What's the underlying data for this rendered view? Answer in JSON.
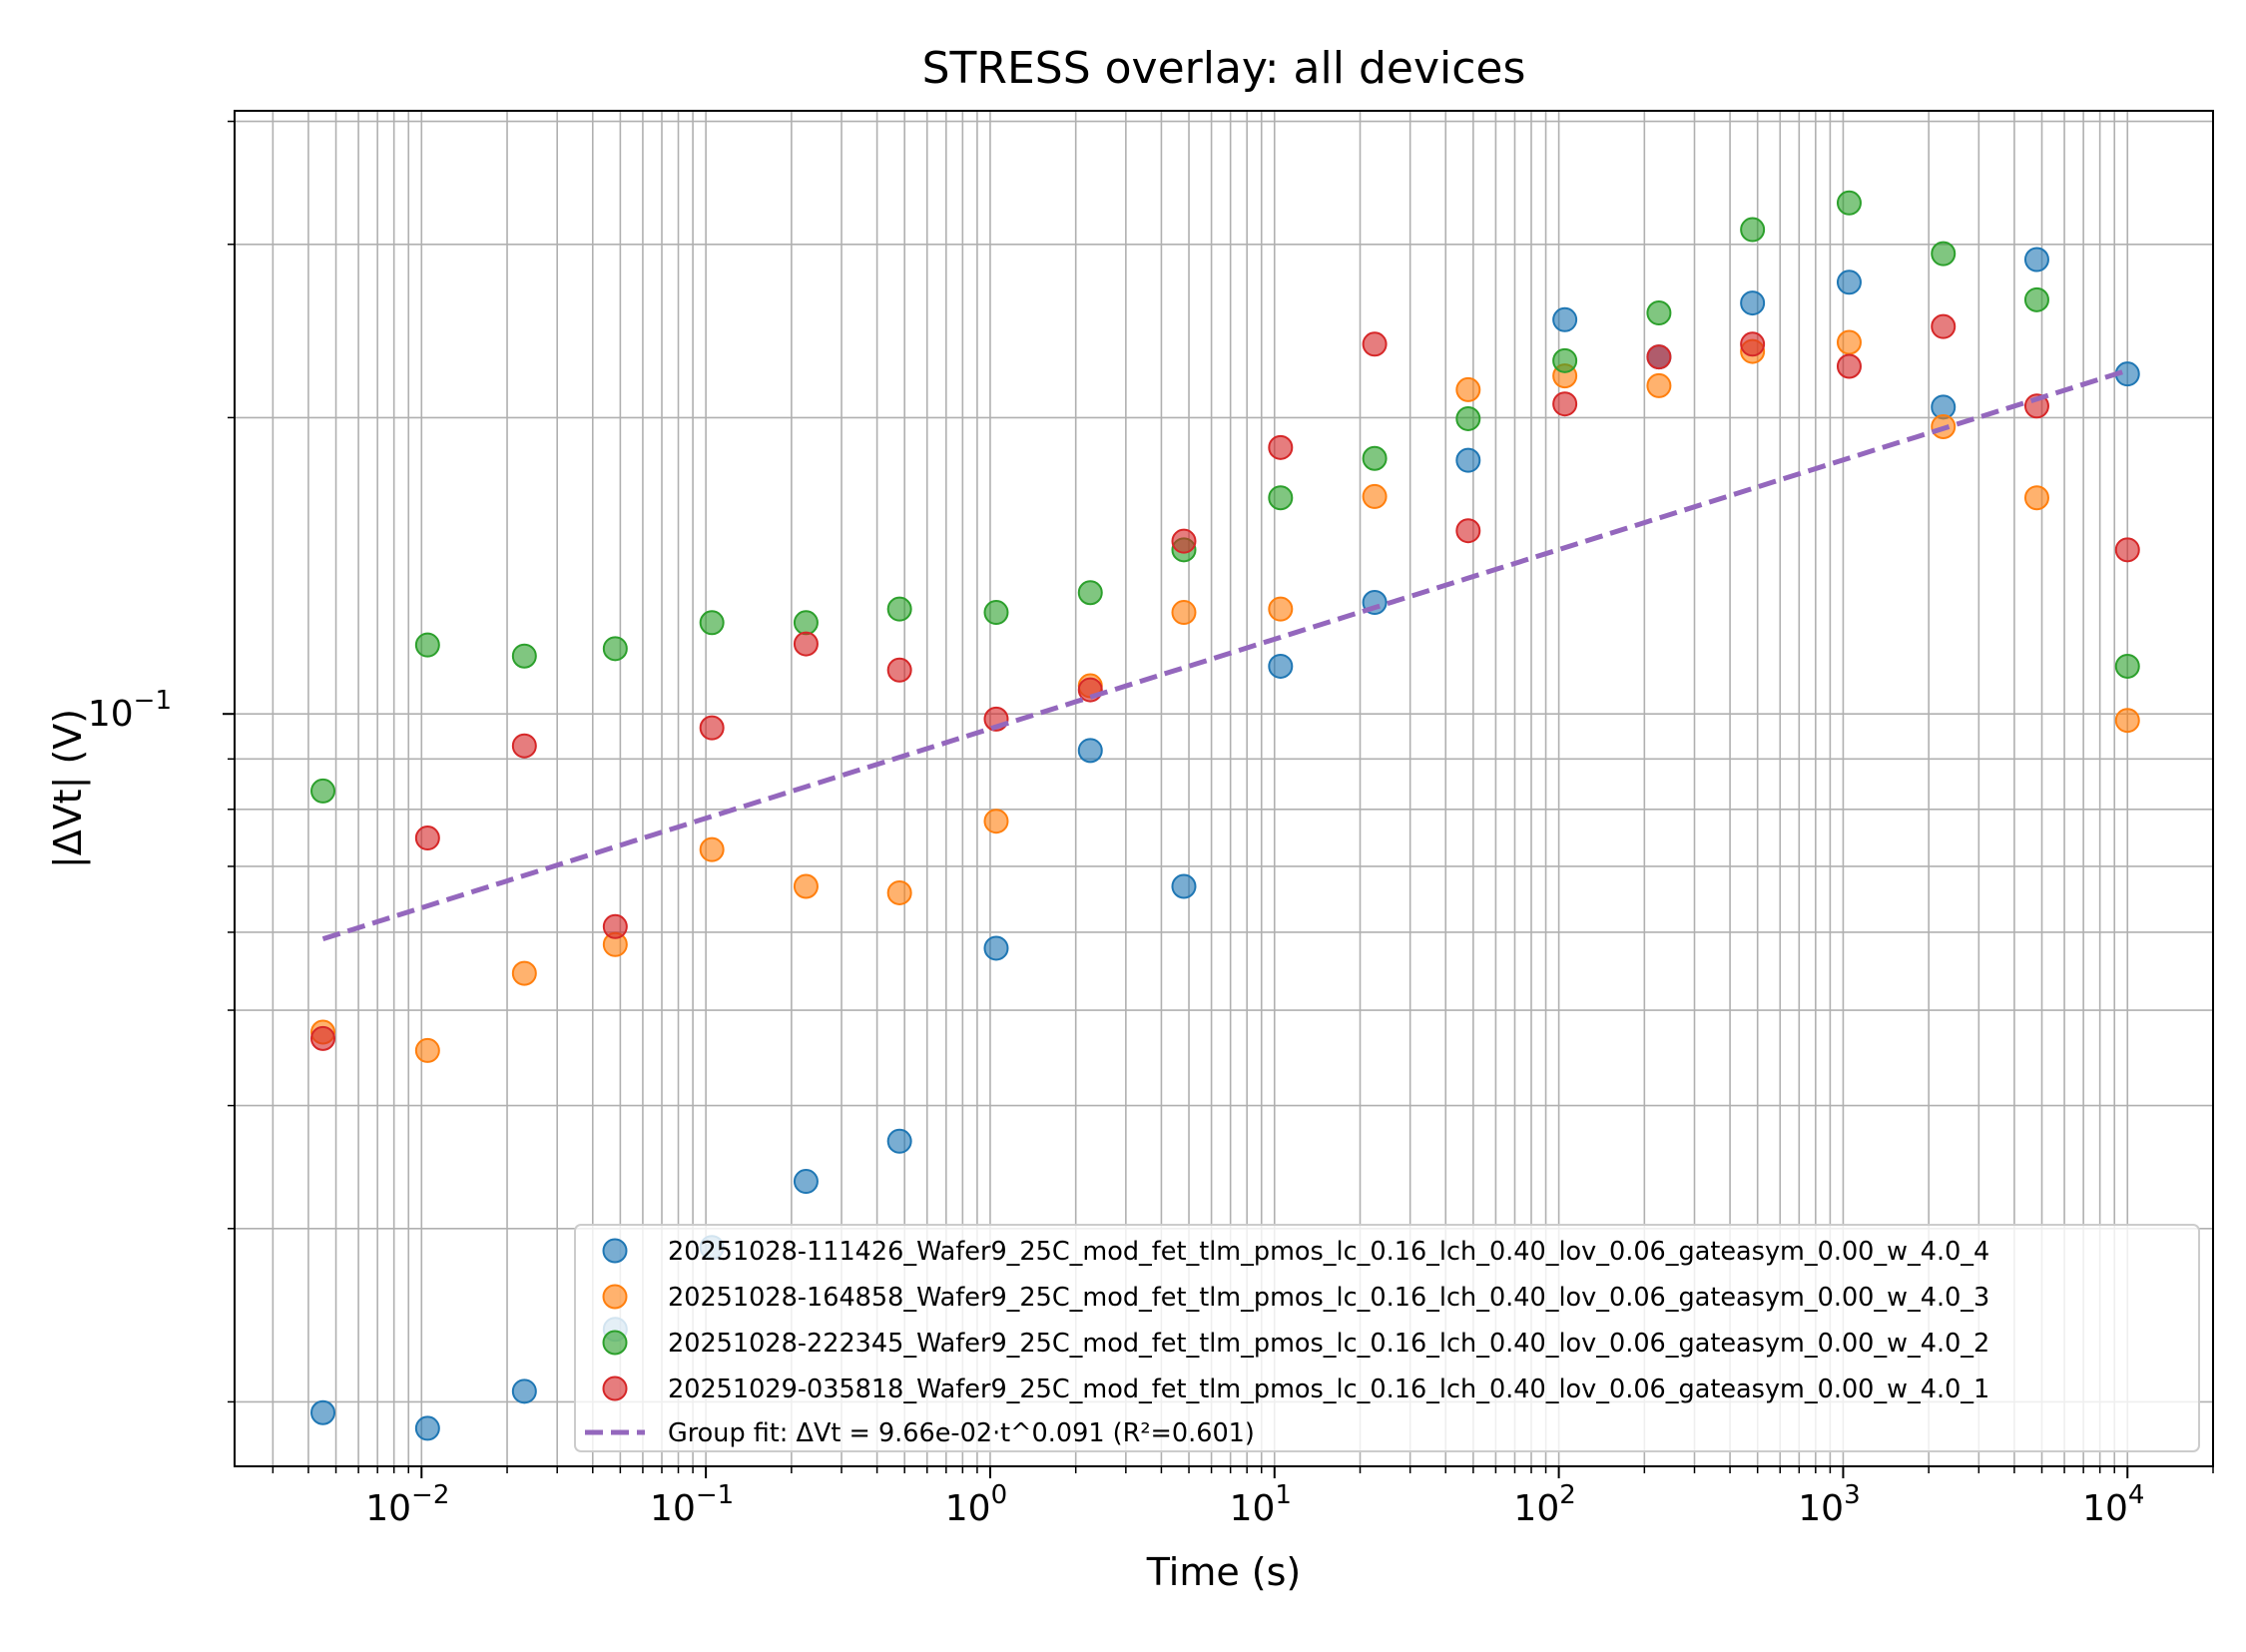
{
  "chart_data": {
    "type": "scatter",
    "title": "STRESS overlay: all devices",
    "xlabel": "Time (s)",
    "ylabel": "|ΔVt| (V)",
    "xscale": "log",
    "yscale": "log",
    "xlim": [
      0.0022,
      20000
    ],
    "ylim": [
      0.0172,
      0.41
    ],
    "grid": "major and minor",
    "legend_position": "lower-right",
    "x_ticks": [
      {
        "value": 0.01,
        "base": "10",
        "exp": "−2"
      },
      {
        "value": 0.1,
        "base": "10",
        "exp": "−1"
      },
      {
        "value": 1,
        "base": "10",
        "exp": "0"
      },
      {
        "value": 10,
        "base": "10",
        "exp": "1"
      },
      {
        "value": 100,
        "base": "10",
        "exp": "2"
      },
      {
        "value": 1000,
        "base": "10",
        "exp": "3"
      },
      {
        "value": 10000,
        "base": "10",
        "exp": "4"
      }
    ],
    "y_ticks": [
      {
        "value": 0.1,
        "base": "10",
        "exp": "−1"
      }
    ],
    "series": [
      {
        "name": "20251028-111426_Wafer9_25C_mod_fet_tlm_pmos_lc_0.16_lch_0.40_lov_0.06_gateasym_0.00_w_4.0_4",
        "color": "#1f77b4",
        "points": [
          [
            0.0045,
            0.0195
          ],
          [
            0.0105,
            0.0188
          ],
          [
            0.023,
            0.0205
          ],
          [
            0.048,
            0.0237
          ],
          [
            0.105,
            0.0287
          ],
          [
            0.225,
            0.0335
          ],
          [
            0.48,
            0.0368
          ],
          [
            1.05,
            0.0578
          ],
          [
            2.25,
            0.0918
          ],
          [
            4.8,
            0.0668
          ],
          [
            10.5,
            0.1118
          ],
          [
            22.5,
            0.1298
          ],
          [
            48,
            0.181
          ],
          [
            105,
            0.2515
          ],
          [
            225,
            0.2305
          ],
          [
            480,
            0.2615
          ],
          [
            1050,
            0.2745
          ],
          [
            2250,
            0.205
          ],
          [
            4800,
            0.2895
          ],
          [
            10000,
            0.2215
          ]
        ]
      },
      {
        "name": "20251028-164858_Wafer9_25C_mod_fet_tlm_pmos_lc_0.16_lch_0.40_lov_0.06_gateasym_0.00_w_4.0_3",
        "color": "#ff7f0e",
        "points": [
          [
            0.0045,
            0.0475
          ],
          [
            0.0105,
            0.0455
          ],
          [
            0.023,
            0.0545
          ],
          [
            0.048,
            0.0583
          ],
          [
            0.105,
            0.0728
          ],
          [
            0.225,
            0.0668
          ],
          [
            0.48,
            0.0658
          ],
          [
            1.05,
            0.0778
          ],
          [
            2.25,
            0.1068
          ],
          [
            4.8,
            0.1268
          ],
          [
            10.5,
            0.1278
          ],
          [
            22.5,
            0.1663
          ],
          [
            48,
            0.2135
          ],
          [
            105,
            0.2205
          ],
          [
            225,
            0.2155
          ],
          [
            480,
            0.2335
          ],
          [
            1050,
            0.2385
          ],
          [
            2250,
            0.1958
          ],
          [
            4800,
            0.1658
          ],
          [
            10000,
            0.0985
          ]
        ]
      },
      {
        "name": "20251028-222345_Wafer9_25C_mod_fet_tlm_pmos_lc_0.16_lch_0.40_lov_0.06_gateasym_0.00_w_4.0_2",
        "color": "#2ca02c",
        "points": [
          [
            0.0045,
            0.0835
          ],
          [
            0.0105,
            0.1175
          ],
          [
            0.023,
            0.1145
          ],
          [
            0.048,
            0.1165
          ],
          [
            0.105,
            0.1238
          ],
          [
            0.225,
            0.1238
          ],
          [
            0.48,
            0.1278
          ],
          [
            1.05,
            0.1268
          ],
          [
            2.25,
            0.1328
          ],
          [
            4.8,
            0.1468
          ],
          [
            10.5,
            0.1658
          ],
          [
            22.5,
            0.1818
          ],
          [
            48,
            0.1995
          ],
          [
            105,
            0.2285
          ],
          [
            225,
            0.2555
          ],
          [
            480,
            0.3105
          ],
          [
            1050,
            0.3305
          ],
          [
            2250,
            0.2935
          ],
          [
            4800,
            0.2635
          ],
          [
            10000,
            0.1118
          ]
        ]
      },
      {
        "name": "20251029-035818_Wafer9_25C_mod_fet_tlm_pmos_lc_0.16_lch_0.40_lov_0.06_gateasym_0.00_w_4.0_1",
        "color": "#d62728",
        "points": [
          [
            0.0045,
            0.0468
          ],
          [
            0.0105,
            0.0748
          ],
          [
            0.023,
            0.0928
          ],
          [
            0.048,
            0.0608
          ],
          [
            0.105,
            0.0968
          ],
          [
            0.225,
            0.1178
          ],
          [
            0.48,
            0.1108
          ],
          [
            1.05,
            0.0988
          ],
          [
            2.25,
            0.1058
          ],
          [
            4.8,
            0.1498
          ],
          [
            10.5,
            0.1865
          ],
          [
            22.5,
            0.2375
          ],
          [
            48,
            0.1535
          ],
          [
            105,
            0.2065
          ],
          [
            225,
            0.2305
          ],
          [
            480,
            0.2375
          ],
          [
            1050,
            0.2255
          ],
          [
            2250,
            0.2475
          ],
          [
            4800,
            0.2055
          ],
          [
            10000,
            0.1468
          ]
        ]
      }
    ],
    "fit": {
      "name": "Group fit: ΔVt = 9.66e-02·t^0.091  (R²=0.601)",
      "color": "#9467bd",
      "style": "dashed",
      "coefficient": 0.0966,
      "exponent": 0.091,
      "x_range": [
        0.0045,
        10000
      ]
    }
  }
}
